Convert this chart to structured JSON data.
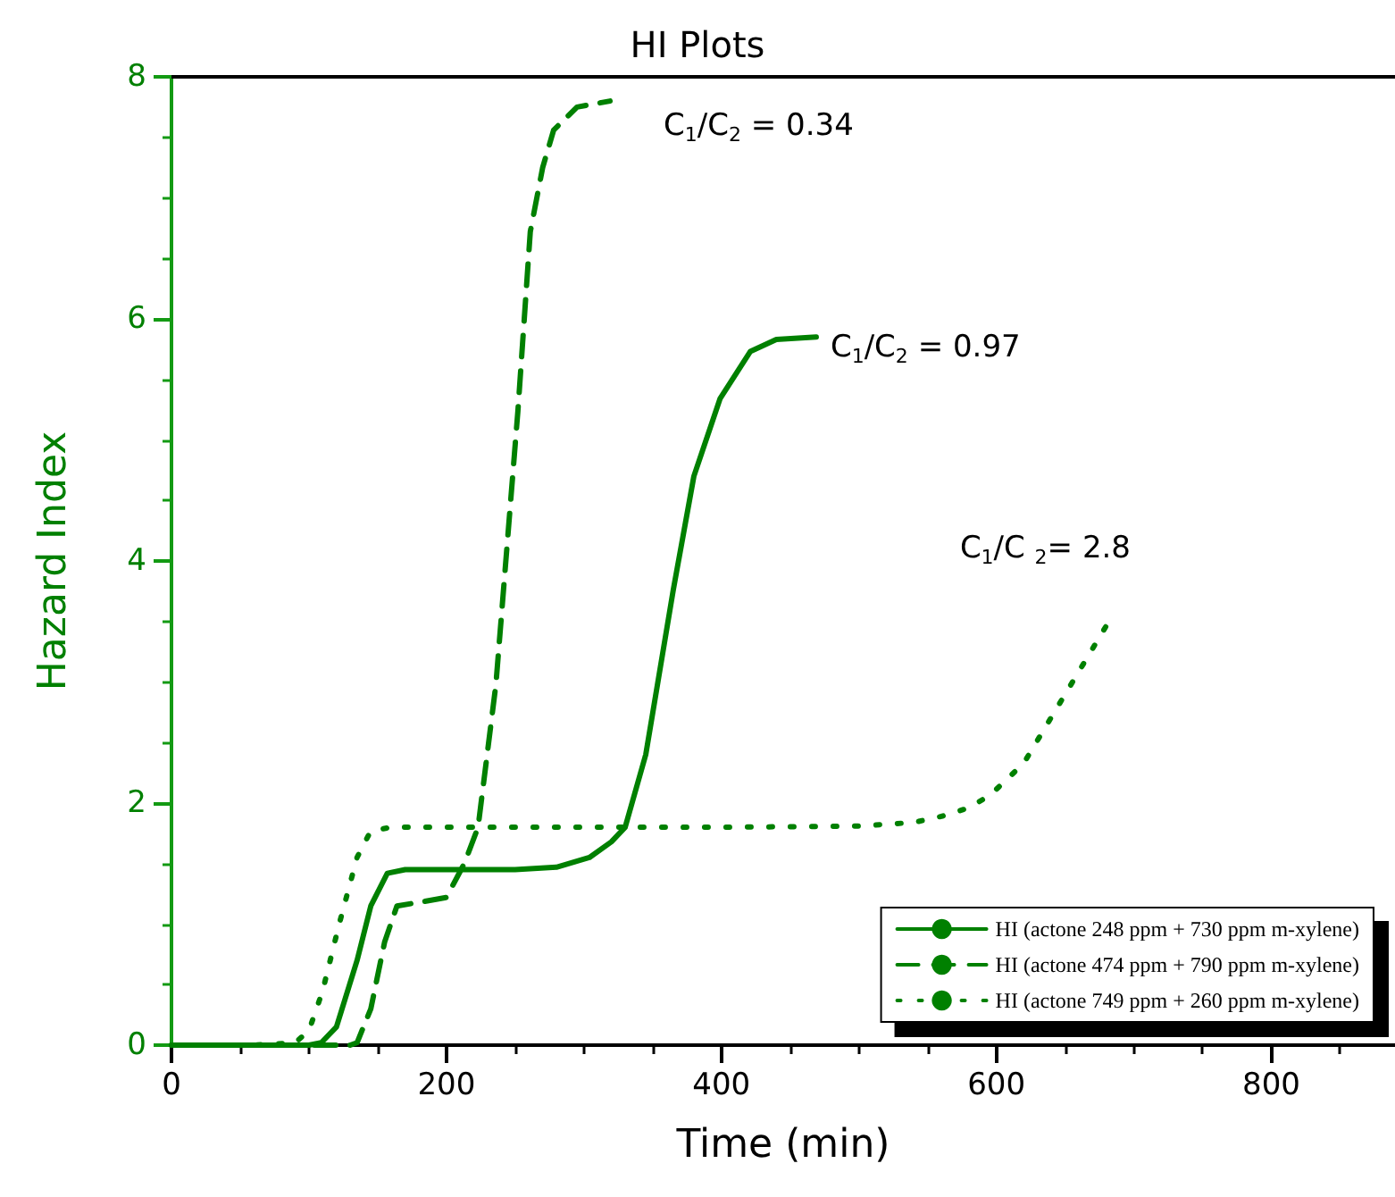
{
  "chart_data": {
    "type": "line",
    "title": "HI Plots",
    "xlabel": "Time (min)",
    "ylabel": "Hazard Index",
    "xlim": [
      0,
      890
    ],
    "xticks": [
      0,
      200,
      400,
      600,
      800
    ],
    "ylim": [
      0,
      8
    ],
    "yticks": [
      0,
      2,
      4,
      6,
      8
    ],
    "grid": false,
    "legend": "bottom right",
    "series": [
      {
        "name": "HI (actone 248 ppm + 730 ppm m-xylene)",
        "color": "#008000",
        "line_style": "solid",
        "x": [
          0,
          60,
          100,
          109,
          120,
          135,
          145,
          157,
          170,
          200,
          250,
          280,
          304,
          320,
          330,
          345,
          365,
          380,
          399,
          421,
          440,
          469
        ],
        "values": [
          0,
          0,
          0,
          0.02,
          0.15,
          0.7,
          1.15,
          1.42,
          1.45,
          1.45,
          1.45,
          1.47,
          1.55,
          1.68,
          1.8,
          2.4,
          3.76,
          4.7,
          5.34,
          5.73,
          5.83,
          5.85
        ]
      },
      {
        "name": "HI (actone 474 ppm + 790 ppm m-xylene)",
        "color": "#008000",
        "line_style": "dashed",
        "x": [
          0,
          100,
          130,
          135,
          145,
          155,
          164,
          180,
          200,
          213,
          223,
          236,
          252,
          261,
          270,
          278,
          295,
          319
        ],
        "values": [
          0,
          0,
          0,
          0.02,
          0.3,
          0.85,
          1.15,
          1.18,
          1.22,
          1.5,
          1.8,
          2.98,
          5.24,
          6.72,
          7.25,
          7.56,
          7.75,
          7.8
        ]
      },
      {
        "name": "HI (actone 749 ppm + 260 ppm m-xylene)",
        "color": "#008000",
        "line_style": "dotted",
        "x": [
          0,
          60,
          90,
          100,
          110,
          122,
          135,
          145,
          160,
          200,
          300,
          400,
          500,
          540,
          560,
          580,
          596,
          620,
          639,
          657,
          684
        ],
        "values": [
          0,
          0,
          0.02,
          0.12,
          0.45,
          1.0,
          1.55,
          1.77,
          1.8,
          1.8,
          1.8,
          1.8,
          1.81,
          1.84,
          1.89,
          1.96,
          2.07,
          2.33,
          2.69,
          3.03,
          3.54
        ]
      }
    ],
    "annotations": [
      "C$_{1}$/C$_{2}$ = 0.97",
      "C$_{1}$/C$_{2}$ = 0.34",
      "C$_{1}$/C $_{2}$= 2.8"
    ]
  }
}
